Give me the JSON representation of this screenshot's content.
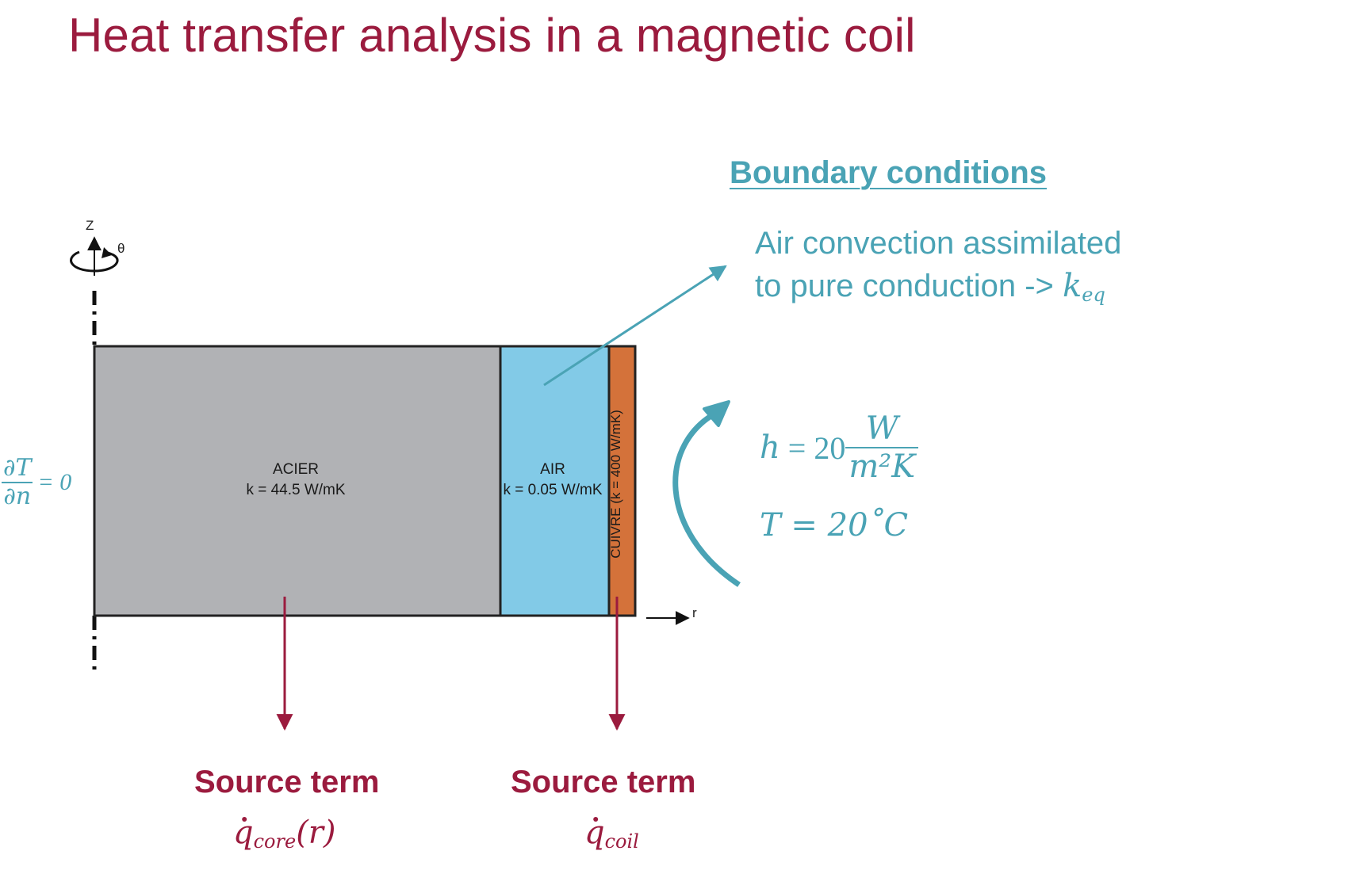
{
  "title": "Heat transfer analysis in a magnetic coil",
  "boundary": {
    "heading": "Boundary conditions",
    "convection_line1": "Air convection assimilated",
    "convection_line2": "to pure conduction -> ",
    "keq_symbol": "k",
    "keq_sub": "eq",
    "h_lhs": "h",
    "h_value": "= 20",
    "h_unit_num": "W",
    "h_unit_den": "m²K",
    "t_eq": "T = 20˚C"
  },
  "neumann": {
    "num": "∂T",
    "den": "∂n",
    "rhs": "= 0"
  },
  "regions": {
    "acier": {
      "name": "ACIER",
      "k": "k = 44.5 W/mK",
      "color": "#b1b2b5"
    },
    "air": {
      "name": "AIR",
      "k": "k = 0.05 W/mK",
      "color": "#82cae7"
    },
    "cuivre": {
      "label": "CUIVRE (k = 400 W/mK)",
      "color": "#d4723a"
    }
  },
  "axes": {
    "z": "Z",
    "theta": "θ",
    "r": "r"
  },
  "sources": {
    "core": {
      "label": "Source term",
      "q": "q",
      "sub": "core",
      "arg": "(r)"
    },
    "coil": {
      "label": "Source term",
      "q": "q",
      "sub": "coil"
    }
  },
  "colors": {
    "title": "#9b1b3e",
    "teal": "#4aa3b5",
    "source": "#9b1b3e"
  }
}
